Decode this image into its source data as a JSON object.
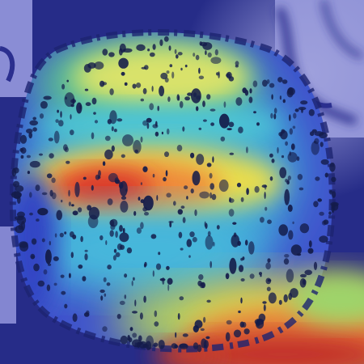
{
  "image": {
    "kind": "heatmap-overlay",
    "colormap": "jet",
    "colors": {
      "background": "#2b2f8f",
      "tissue_base": "#4a5fd6",
      "outer_lavender": "#8c8fd8",
      "hot_red": "#d9362a",
      "warm_yellow": "#e9e657",
      "cool_cyan": "#4fc7d8",
      "green": "#5fbf73",
      "dark_speckle": "#101a44"
    }
  }
}
